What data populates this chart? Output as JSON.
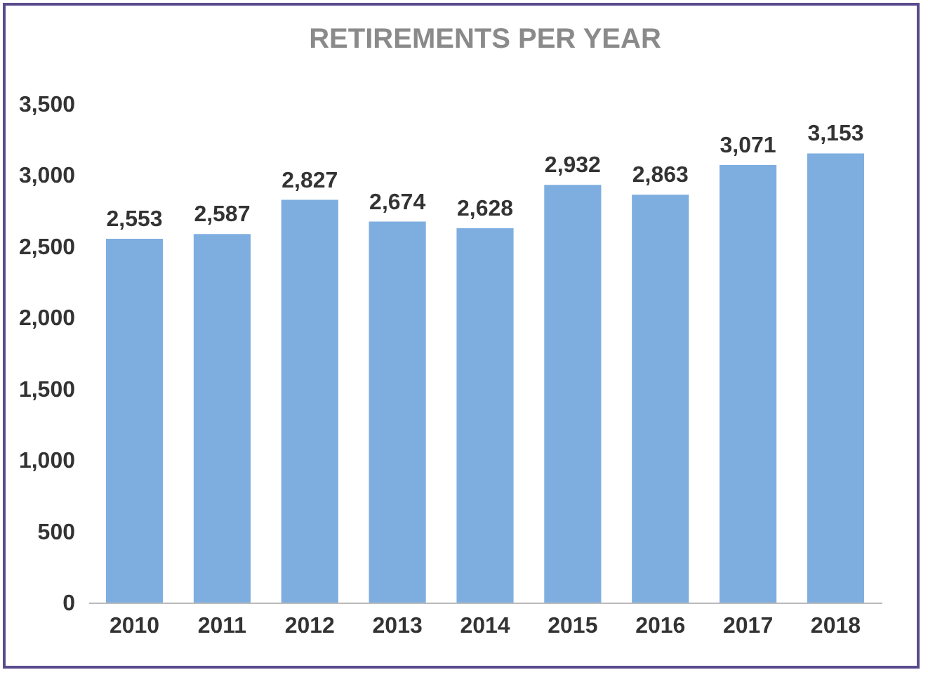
{
  "chart_data": {
    "type": "bar",
    "title": "RETIREMENTS PER YEAR",
    "categories": [
      "2010",
      "2011",
      "2012",
      "2013",
      "2014",
      "2015",
      "2016",
      "2017",
      "2018"
    ],
    "values": [
      2553,
      2587,
      2827,
      2674,
      2628,
      2932,
      2863,
      3071,
      3153
    ],
    "value_labels": [
      "2,553",
      "2,587",
      "2,827",
      "2,674",
      "2,628",
      "2,932",
      "2,863",
      "3,071",
      "3,153"
    ],
    "color": "#7eaee0",
    "ylim": [
      0,
      3500
    ],
    "yticks": [
      0,
      500,
      {
        "value": 1000,
        "label": "1,000"
      },
      {
        "value": 1500,
        "label": "1,500"
      },
      {
        "value": 2000,
        "label": "2,000"
      },
      {
        "value": 2500,
        "label": "2,500"
      },
      {
        "value": 3000,
        "label": "3,000"
      },
      {
        "value": 3500,
        "label": "3,500"
      }
    ],
    "grid": false
  }
}
